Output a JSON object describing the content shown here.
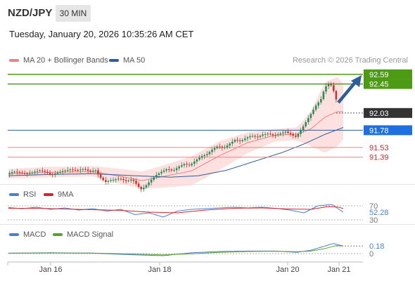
{
  "header": {
    "symbol": "NZD/JPY",
    "timeframe": "30 MIN",
    "timestamp": "Tuesday, January 20, 2026 10:35:26 AM CET"
  },
  "credit": "Research © 2026 Trading Central",
  "colors": {
    "up": "#2e8b57",
    "down": "#c0392b",
    "ma20": "#f08080",
    "ma50": "#2f5d9b",
    "bands": "#fcd3d3",
    "resistance": "#5aa02c",
    "support": "#f08080",
    "current": "#333333",
    "pivot": "#1f6fe0",
    "rsi": "#4a7fd4",
    "rsi_ma": "#d8232a",
    "macd": "#4a7fd4",
    "macd_signal": "#5aa02c"
  },
  "chart_data": [
    {
      "type": "candlestick",
      "legend": [
        "MA 20 + Bollinger Bands",
        "MA 50"
      ],
      "x_ticks": [
        "Jan 16",
        "Jan 18",
        "Jan 20",
        "Jan 21"
      ],
      "ylim": [
        91.0,
        92.7
      ],
      "levels": [
        {
          "value": 92.59,
          "label": "92.59",
          "kind": "resistance"
        },
        {
          "value": 92.45,
          "label": "92.45",
          "kind": "resistance"
        },
        {
          "value": 92.03,
          "label": "92.03",
          "kind": "current"
        },
        {
          "value": 91.78,
          "label": "91.78",
          "kind": "pivot"
        },
        {
          "value": 91.53,
          "label": "91.53",
          "kind": "support"
        },
        {
          "value": 91.39,
          "label": "91.39",
          "kind": "support"
        }
      ],
      "price_path": [
        [
          0,
          91.14
        ],
        [
          6,
          91.17
        ],
        [
          12,
          91.18
        ],
        [
          20,
          91.16
        ],
        [
          30,
          91.15
        ],
        [
          40,
          91.18
        ],
        [
          48,
          91.2
        ],
        [
          56,
          91.17
        ],
        [
          64,
          91.13
        ],
        [
          70,
          91.16
        ],
        [
          80,
          91.19
        ],
        [
          90,
          91.21
        ],
        [
          100,
          91.2
        ],
        [
          110,
          91.22
        ],
        [
          118,
          91.18
        ],
        [
          126,
          91.2
        ],
        [
          132,
          91.1
        ],
        [
          140,
          91.03
        ],
        [
          150,
          91.06
        ],
        [
          160,
          91.08
        ],
        [
          170,
          91.04
        ],
        [
          178,
          91.07
        ],
        [
          184,
          91.0
        ],
        [
          190,
          90.92
        ],
        [
          196,
          90.96
        ],
        [
          204,
          91.05
        ],
        [
          212,
          91.13
        ],
        [
          220,
          91.18
        ],
        [
          228,
          91.22
        ],
        [
          236,
          91.19
        ],
        [
          244,
          91.25
        ],
        [
          252,
          91.29
        ],
        [
          260,
          91.27
        ],
        [
          268,
          91.34
        ],
        [
          276,
          91.4
        ],
        [
          284,
          91.43
        ],
        [
          292,
          91.5
        ],
        [
          300,
          91.55
        ],
        [
          308,
          91.52
        ],
        [
          316,
          91.58
        ],
        [
          324,
          91.64
        ],
        [
          332,
          91.62
        ],
        [
          340,
          91.67
        ],
        [
          348,
          91.7
        ],
        [
          356,
          91.68
        ],
        [
          364,
          91.72
        ],
        [
          372,
          91.73
        ],
        [
          380,
          91.7
        ],
        [
          388,
          91.73
        ],
        [
          396,
          91.76
        ],
        [
          404,
          91.72
        ],
        [
          410,
          91.68
        ],
        [
          416,
          91.75
        ],
        [
          422,
          91.85
        ],
        [
          428,
          91.95
        ],
        [
          434,
          92.05
        ],
        [
          440,
          92.15
        ],
        [
          446,
          92.22
        ],
        [
          452,
          92.4
        ],
        [
          458,
          92.46
        ],
        [
          462,
          92.42
        ],
        [
          466,
          92.3
        ],
        [
          470,
          92.15
        ],
        [
          476,
          92.03
        ]
      ],
      "bollinger": {
        "upper": [
          [
            0,
            91.22
          ],
          [
            60,
            91.25
          ],
          [
            120,
            91.26
          ],
          [
            160,
            91.22
          ],
          [
            190,
            91.18
          ],
          [
            220,
            91.27
          ],
          [
            260,
            91.4
          ],
          [
            300,
            91.62
          ],
          [
            340,
            91.75
          ],
          [
            380,
            91.8
          ],
          [
            410,
            91.82
          ],
          [
            430,
            92.05
          ],
          [
            450,
            92.48
          ],
          [
            468,
            92.55
          ],
          [
            476,
            92.45
          ]
        ],
        "lower": [
          [
            0,
            91.08
          ],
          [
            60,
            91.1
          ],
          [
            120,
            91.11
          ],
          [
            160,
            91.0
          ],
          [
            190,
            90.93
          ],
          [
            220,
            90.95
          ],
          [
            260,
            90.98
          ],
          [
            300,
            91.2
          ],
          [
            340,
            91.45
          ],
          [
            380,
            91.62
          ],
          [
            410,
            91.63
          ],
          [
            430,
            91.55
          ],
          [
            450,
            91.45
          ],
          [
            468,
            91.55
          ],
          [
            476,
            91.65
          ]
        ],
        "middle": [
          [
            0,
            91.15
          ],
          [
            60,
            91.17
          ],
          [
            120,
            91.18
          ],
          [
            160,
            91.11
          ],
          [
            190,
            91.05
          ],
          [
            220,
            91.11
          ],
          [
            260,
            91.19
          ],
          [
            300,
            91.41
          ],
          [
            340,
            91.6
          ],
          [
            380,
            91.71
          ],
          [
            410,
            91.72
          ],
          [
            430,
            91.8
          ],
          [
            450,
            91.97
          ],
          [
            468,
            92.05
          ],
          [
            476,
            92.05
          ]
        ]
      },
      "ma50": [
        [
          0,
          91.12
        ],
        [
          60,
          91.14
        ],
        [
          120,
          91.15
        ],
        [
          180,
          91.12
        ],
        [
          230,
          91.1
        ],
        [
          270,
          91.12
        ],
        [
          310,
          91.2
        ],
        [
          350,
          91.33
        ],
        [
          390,
          91.46
        ],
        [
          420,
          91.58
        ],
        [
          450,
          91.72
        ],
        [
          476,
          91.82
        ]
      ]
    },
    {
      "type": "line",
      "legend": [
        "RSI",
        "9MA"
      ],
      "levels": [
        {
          "value": 70,
          "label": "70"
        },
        {
          "value": 30,
          "label": "30"
        }
      ],
      "current_value": 52.28,
      "current_label": "52.28",
      "ylim": [
        20,
        80
      ],
      "rsi": [
        [
          0,
          65
        ],
        [
          20,
          62
        ],
        [
          40,
          66
        ],
        [
          60,
          60
        ],
        [
          80,
          64
        ],
        [
          100,
          58
        ],
        [
          120,
          62
        ],
        [
          140,
          55
        ],
        [
          160,
          60
        ],
        [
          180,
          45
        ],
        [
          200,
          50
        ],
        [
          220,
          38
        ],
        [
          240,
          55
        ],
        [
          260,
          60
        ],
        [
          280,
          62
        ],
        [
          300,
          64
        ],
        [
          320,
          66
        ],
        [
          340,
          64
        ],
        [
          360,
          66
        ],
        [
          380,
          63
        ],
        [
          400,
          58
        ],
        [
          420,
          50
        ],
        [
          440,
          70
        ],
        [
          460,
          74
        ],
        [
          470,
          60
        ],
        [
          476,
          52
        ]
      ],
      "rsi_ma": [
        [
          0,
          63
        ],
        [
          40,
          63
        ],
        [
          80,
          61
        ],
        [
          120,
          59
        ],
        [
          160,
          57
        ],
        [
          200,
          52
        ],
        [
          240,
          50
        ],
        [
          280,
          58
        ],
        [
          320,
          63
        ],
        [
          360,
          64
        ],
        [
          400,
          61
        ],
        [
          430,
          60
        ],
        [
          455,
          68
        ],
        [
          470,
          66
        ],
        [
          476,
          62
        ]
      ]
    },
    {
      "type": "line",
      "legend": [
        "MACD",
        "MACD Signal"
      ],
      "levels": [
        {
          "value": 0,
          "label": "0"
        }
      ],
      "current_value": 0.18,
      "current_label": "0.18",
      "ylim": [
        -0.15,
        0.35
      ],
      "macd": [
        [
          0,
          0.01
        ],
        [
          60,
          0.02
        ],
        [
          120,
          0.01
        ],
        [
          180,
          -0.03
        ],
        [
          220,
          -0.05
        ],
        [
          260,
          0.02
        ],
        [
          300,
          0.05
        ],
        [
          340,
          0.06
        ],
        [
          380,
          0.06
        ],
        [
          410,
          0.03
        ],
        [
          430,
          0.08
        ],
        [
          450,
          0.18
        ],
        [
          462,
          0.24
        ],
        [
          476,
          0.18
        ]
      ],
      "signal": [
        [
          0,
          0.01
        ],
        [
          60,
          0.015
        ],
        [
          120,
          0.012
        ],
        [
          180,
          -0.01
        ],
        [
          220,
          -0.03
        ],
        [
          260,
          -0.005
        ],
        [
          300,
          0.03
        ],
        [
          340,
          0.05
        ],
        [
          380,
          0.055
        ],
        [
          410,
          0.045
        ],
        [
          430,
          0.06
        ],
        [
          450,
          0.12
        ],
        [
          466,
          0.19
        ],
        [
          476,
          0.18
        ]
      ]
    }
  ]
}
